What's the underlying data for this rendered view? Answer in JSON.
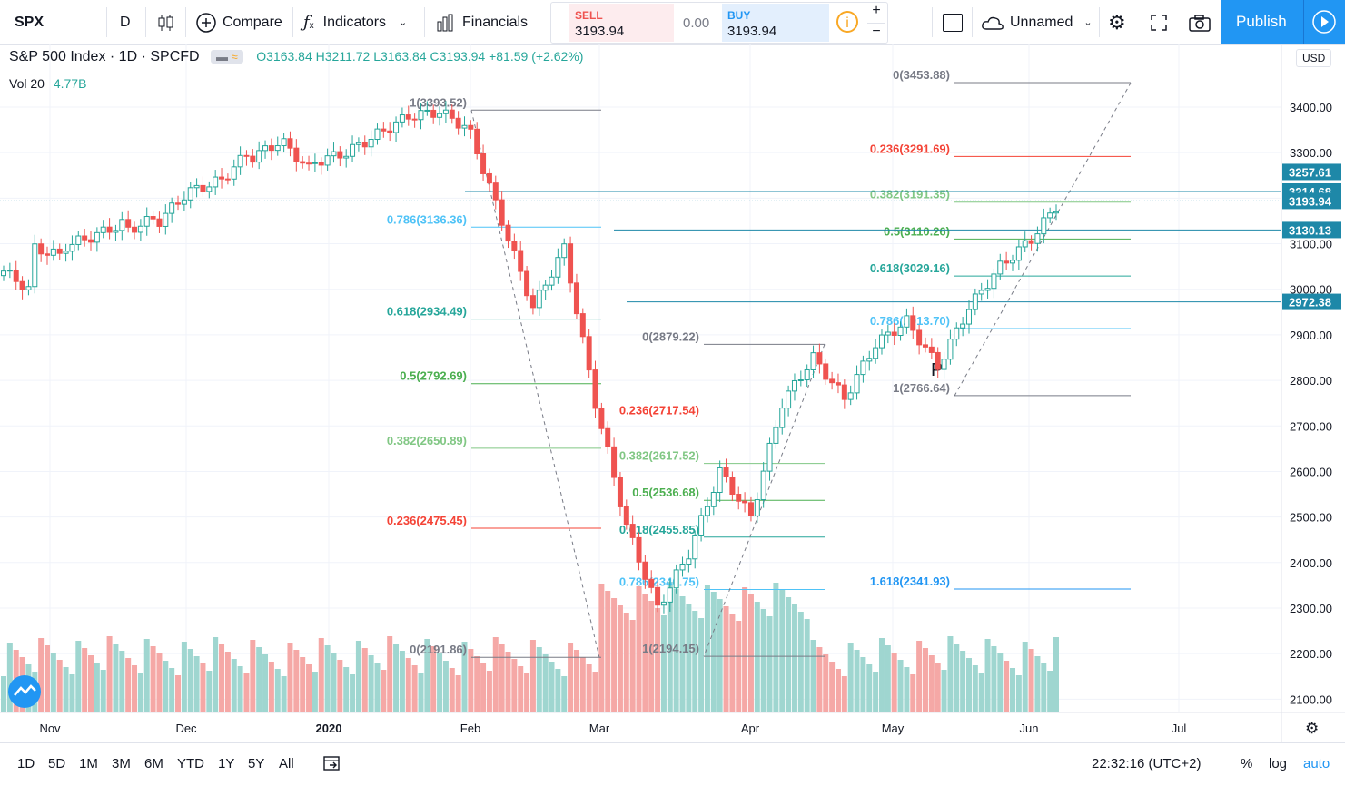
{
  "toolbar": {
    "symbol": "SPX",
    "interval": "D",
    "compare_label": "Compare",
    "indicators_label": "Indicators",
    "financials_label": "Financials",
    "sell_label": "SELL",
    "sell_price": "3193.94",
    "spread": "0.00",
    "buy_label": "BUY",
    "buy_price": "3193.94",
    "plus": "+",
    "minus": "−",
    "layout_name": "Unnamed",
    "publish_label": "Publish"
  },
  "legend": {
    "title": "S&P 500 Index · 1D · SPCFD",
    "ohlc": "O3163.84 H3211.72 L3163.84 C3193.94 +81.59 (+2.62%)",
    "volume_label": "Vol 20",
    "volume_value": "4.77B"
  },
  "price_axis": {
    "currency": "USD",
    "ticks": [
      "3400.00",
      "3300.00",
      "3200.00",
      "3100.00",
      "3000.00",
      "2900.00",
      "2800.00",
      "2700.00",
      "2600.00",
      "2500.00",
      "2400.00",
      "2300.00",
      "2200.00",
      "2100.00"
    ],
    "tags": [
      {
        "label": "3257.61",
        "color": "#1e88a8"
      },
      {
        "label": "3214.68",
        "color": "#1e88a8"
      },
      {
        "label": "3193.94",
        "color": "#1e88a8"
      },
      {
        "label": "3130.13",
        "color": "#1e88a8"
      },
      {
        "label": "2972.38",
        "color": "#1e88a8"
      }
    ]
  },
  "time_axis": [
    "Nov",
    "Dec",
    "2020",
    "Feb",
    "Mar",
    "Apr",
    "May",
    "Jun",
    "Jul"
  ],
  "chart_data": {
    "type": "candlestick",
    "title": "S&P 500 Index · 1D · SPCFD",
    "ylim": [
      2080,
      3480
    ],
    "fib_labels": [
      "1(3393.52)",
      "0.786(3136.36)",
      "0.618(2934.49)",
      "0.5(2792.69)",
      "0.382(2650.89)",
      "0.236(2475.45)",
      "0(2191.86)",
      "0(2879.22)",
      "0.236(2717.54)",
      "0.382(2617.52)",
      "0.5(2536.68)",
      "0.618(2455.85)",
      "0.786(2340.75)",
      "1(2194.15)",
      "0(3453.88)",
      "0.236(3291.69)",
      "0.382(3191.35)",
      "0.5(3110.26)",
      "0.618(3029.16)",
      "0.786(2913.70)",
      "1(2766.64)",
      "1.618(2341.93)"
    ],
    "marker": "P"
  },
  "bottombar": {
    "ranges": [
      "1D",
      "5D",
      "1M",
      "3M",
      "6M",
      "YTD",
      "1Y",
      "5Y",
      "All"
    ],
    "clock": "22:32:16 (UTC+2)",
    "percent": "%",
    "log": "log",
    "auto": "auto"
  },
  "colors": {
    "up": "#26a69a",
    "down": "#ef5350",
    "accent": "#2196f3",
    "fib_blue": "#1e88a8"
  }
}
